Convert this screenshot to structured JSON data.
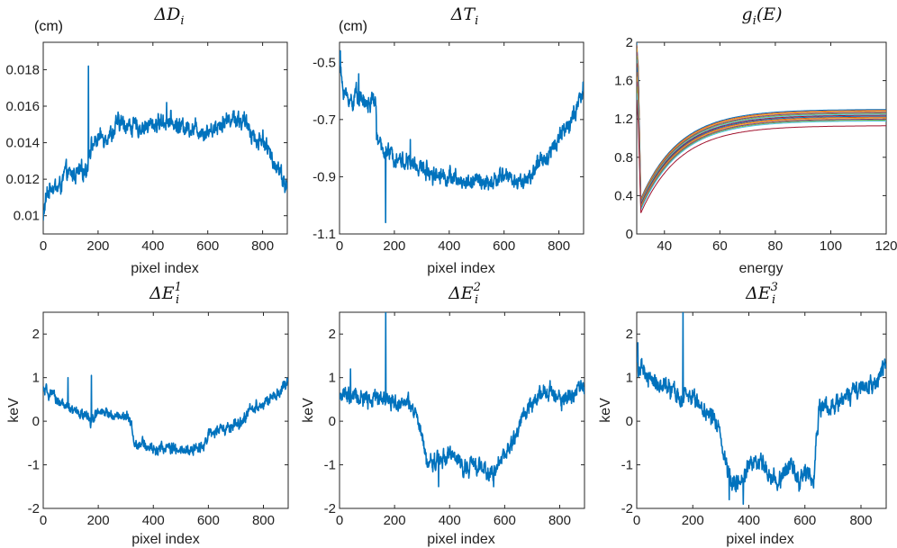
{
  "chart_data": [
    {
      "id": "deltaD",
      "type": "line",
      "title": "ΔD",
      "title_sub": "i",
      "unit": "(cm)",
      "xlabel": "pixel index",
      "ylabel": "",
      "xlim": [
        0,
        890
      ],
      "ylim": [
        0.009,
        0.0195
      ],
      "xticks": [
        0,
        200,
        400,
        600,
        800
      ],
      "yticks": [
        0.01,
        0.012,
        0.014,
        0.016,
        0.018
      ],
      "ytick_labels": [
        "0.01",
        "0.012",
        "0.014",
        "0.016",
        "0.018"
      ],
      "color": "#0072BD",
      "noise": 0.00045,
      "spikes": [
        [
          165,
          0.0182
        ],
        [
          450,
          0.0162
        ]
      ],
      "series": [
        {
          "name": "ΔD_i",
          "x": [
            0,
            5,
            15,
            30,
            50,
            70,
            80,
            100,
            120,
            150,
            160,
            170,
            200,
            230,
            260,
            270,
            300,
            350,
            400,
            450,
            500,
            550,
            600,
            650,
            680,
            700,
            750,
            780,
            800,
            830,
            860,
            880,
            890
          ],
          "y": [
            0.0097,
            0.0105,
            0.0112,
            0.0117,
            0.0115,
            0.0118,
            0.0124,
            0.0122,
            0.0123,
            0.0125,
            0.0126,
            0.0137,
            0.0142,
            0.0144,
            0.0146,
            0.0151,
            0.015,
            0.0148,
            0.015,
            0.0152,
            0.0149,
            0.0148,
            0.0146,
            0.0151,
            0.0153,
            0.0154,
            0.0149,
            0.014,
            0.0143,
            0.0132,
            0.0126,
            0.0118,
            0.0115
          ]
        }
      ]
    },
    {
      "id": "deltaT",
      "type": "line",
      "title": "ΔT",
      "title_sub": "i",
      "unit": "(cm)",
      "xlabel": "pixel index",
      "ylabel": "",
      "xlim": [
        0,
        890
      ],
      "ylim": [
        -1.1,
        -0.43
      ],
      "xticks": [
        0,
        200,
        400,
        600,
        800
      ],
      "yticks": [
        -1.1,
        -0.9,
        -0.7,
        -0.5
      ],
      "ytick_labels": [
        "-1.1",
        "-0.9",
        "-0.7",
        "-0.5"
      ],
      "color": "#0072BD",
      "noise": 0.028,
      "spikes": [
        [
          3,
          -0.46
        ],
        [
          70,
          -0.54
        ],
        [
          168,
          -1.06
        ],
        [
          135,
          -0.77
        ],
        [
          258,
          -0.77
        ]
      ],
      "series": [
        {
          "name": "ΔT_i",
          "x": [
            0,
            10,
            25,
            50,
            60,
            80,
            100,
            130,
            140,
            150,
            200,
            250,
            300,
            350,
            400,
            450,
            500,
            550,
            600,
            650,
            700,
            720,
            750,
            780,
            800,
            830,
            860,
            890
          ],
          "y": [
            -0.5,
            -0.58,
            -0.62,
            -0.64,
            -0.6,
            -0.63,
            -0.65,
            -0.63,
            -0.78,
            -0.8,
            -0.83,
            -0.85,
            -0.87,
            -0.89,
            -0.9,
            -0.92,
            -0.91,
            -0.93,
            -0.89,
            -0.92,
            -0.9,
            -0.86,
            -0.84,
            -0.79,
            -0.76,
            -0.72,
            -0.68,
            -0.6
          ]
        }
      ]
    },
    {
      "id": "gE",
      "type": "line",
      "title": "g",
      "title_sub": "i",
      "title_rest": "(E)",
      "xlabel": "energy",
      "ylabel": "",
      "xlim": [
        30,
        120
      ],
      "ylim": [
        0,
        2
      ],
      "xticks": [
        40,
        60,
        80,
        100,
        120
      ],
      "yticks": [
        0,
        0.4,
        0.8,
        1.2,
        1.6,
        2
      ],
      "ytick_labels": [
        "0",
        "0.4",
        "0.8",
        "1.2",
        "1.6",
        "2"
      ],
      "curve": {
        "e_start": 30,
        "e_drop": 31.5,
        "e_end": 120,
        "tau": 14,
        "n_curves": 14,
        "start_values": [
          2.0,
          1.97,
          1.94,
          1.9,
          1.86,
          1.82,
          1.78,
          1.74,
          1.69,
          1.64,
          1.59,
          1.54,
          1.47,
          1.4
        ],
        "low_values": [
          0.37,
          0.36,
          0.35,
          0.34,
          0.33,
          0.32,
          0.31,
          0.3,
          0.29,
          0.28,
          0.27,
          0.26,
          0.25,
          0.22
        ],
        "plateau_values": [
          1.3,
          1.29,
          1.28,
          1.27,
          1.26,
          1.25,
          1.24,
          1.23,
          1.22,
          1.21,
          1.2,
          1.19,
          1.18,
          1.13
        ]
      },
      "colors": [
        "#0072BD",
        "#D95319",
        "#EDB120",
        "#7E2F8E",
        "#77AC30",
        "#4DBEEE",
        "#A2142F",
        "#0072BD",
        "#D95319",
        "#EDB120",
        "#7E2F8E",
        "#77AC30",
        "#4DBEEE",
        "#A2142F"
      ]
    },
    {
      "id": "deltaE1",
      "type": "line",
      "title": "ΔE",
      "title_sub": "i",
      "title_sup": "1",
      "xlabel": "pixel index",
      "ylabel": "keV",
      "xlim": [
        0,
        890
      ],
      "ylim": [
        -2,
        2.5
      ],
      "xticks": [
        0,
        200,
        400,
        600,
        800
      ],
      "yticks": [
        -2,
        -1,
        0,
        1,
        2
      ],
      "ytick_labels": [
        "-2",
        "-1",
        "0",
        "1",
        "2"
      ],
      "color": "#0072BD",
      "noise": 0.12,
      "spikes": [
        [
          175,
          1.05
        ],
        [
          90,
          1.0
        ]
      ],
      "series": [
        {
          "name": "ΔE_i^1",
          "x": [
            0,
            30,
            60,
            80,
            100,
            150,
            170,
            200,
            250,
            300,
            320,
            330,
            350,
            400,
            450,
            500,
            550,
            580,
            600,
            650,
            700,
            730,
            750,
            800,
            850,
            890
          ],
          "y": [
            0.7,
            0.6,
            0.45,
            0.35,
            0.25,
            0.15,
            0.0,
            0.2,
            0.15,
            0.1,
            0.0,
            -0.5,
            -0.5,
            -0.65,
            -0.6,
            -0.7,
            -0.65,
            -0.55,
            -0.3,
            -0.2,
            -0.1,
            0.0,
            0.3,
            0.4,
            0.6,
            0.9
          ]
        }
      ]
    },
    {
      "id": "deltaE2",
      "type": "line",
      "title": "ΔE",
      "title_sub": "i",
      "title_sup": "2",
      "xlabel": "pixel index",
      "ylabel": "keV",
      "xlim": [
        0,
        890
      ],
      "ylim": [
        -2,
        2.5
      ],
      "xticks": [
        0,
        200,
        400,
        600,
        800
      ],
      "yticks": [
        -2,
        -1,
        0,
        1,
        2
      ],
      "ytick_labels": [
        "-2",
        "-1",
        "0",
        "1",
        "2"
      ],
      "color": "#0072BD",
      "noise": 0.18,
      "spikes": [
        [
          168,
          2.5
        ],
        [
          40,
          1.2
        ],
        [
          560,
          -1.5
        ],
        [
          360,
          -1.5
        ]
      ],
      "series": [
        {
          "name": "ΔE_i^2",
          "x": [
            0,
            50,
            100,
            150,
            200,
            250,
            280,
            300,
            320,
            350,
            400,
            450,
            500,
            550,
            570,
            600,
            620,
            640,
            660,
            700,
            750,
            800,
            850,
            890
          ],
          "y": [
            0.6,
            0.55,
            0.5,
            0.55,
            0.45,
            0.4,
            0.1,
            -0.4,
            -1.0,
            -0.9,
            -0.75,
            -1.05,
            -1.0,
            -1.2,
            -1.1,
            -0.7,
            -0.6,
            -0.35,
            0.1,
            0.4,
            0.7,
            0.5,
            0.6,
            0.9
          ]
        }
      ]
    },
    {
      "id": "deltaE3",
      "type": "line",
      "title": "ΔE",
      "title_sub": "i",
      "title_sup": "3",
      "xlabel": "pixel index",
      "ylabel": "keV",
      "xlim": [
        0,
        890
      ],
      "ylim": [
        -2,
        2.5
      ],
      "xticks": [
        0,
        200,
        400,
        600,
        800
      ],
      "yticks": [
        -2,
        -1,
        0,
        1,
        2
      ],
      "ytick_labels": [
        "-2",
        "-1",
        "0",
        "1",
        "2"
      ],
      "color": "#0072BD",
      "noise": 0.2,
      "spikes": [
        [
          165,
          2.5
        ],
        [
          4,
          1.8
        ],
        [
          380,
          -1.9
        ],
        [
          330,
          -1.8
        ]
      ],
      "series": [
        {
          "name": "ΔE_i^3",
          "x": [
            0,
            10,
            40,
            80,
            120,
            160,
            200,
            250,
            290,
            320,
            340,
            380,
            400,
            450,
            500,
            550,
            580,
            610,
            630,
            650,
            700,
            750,
            800,
            850,
            890
          ],
          "y": [
            1.4,
            1.2,
            1.0,
            0.85,
            0.7,
            0.5,
            0.6,
            0.2,
            -0.05,
            -1.0,
            -1.3,
            -1.5,
            -0.9,
            -1.0,
            -1.4,
            -1.0,
            -1.3,
            -1.1,
            -1.5,
            0.3,
            0.4,
            0.6,
            0.7,
            0.8,
            1.3
          ]
        }
      ]
    }
  ]
}
